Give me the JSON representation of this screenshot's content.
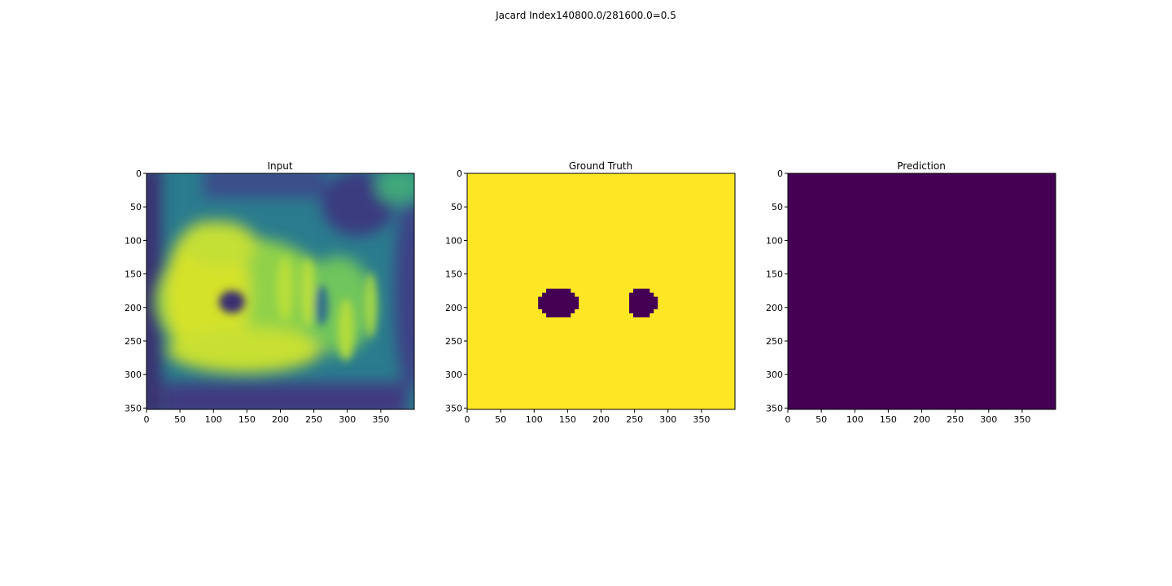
{
  "figure": {
    "suptitle": "Jacard Index140800.0/281600.0=0.5"
  },
  "chart_data": [
    {
      "type": "heatmap",
      "title": "Input",
      "colormap": "viridis",
      "xlim": [
        0,
        400
      ],
      "ylim": [
        352,
        0
      ],
      "xticks": [
        0,
        50,
        100,
        150,
        200,
        250,
        300,
        350
      ],
      "yticks": [
        0,
        50,
        100,
        150,
        200,
        250,
        300,
        350
      ],
      "description_values": {
        "background": 0.45,
        "bright_region_center": [
          150,
          190
        ],
        "dark_hole_center": [
          128,
          190
        ]
      }
    },
    {
      "type": "heatmap",
      "title": "Ground Truth",
      "colormap": "viridis",
      "xlim": [
        0,
        400
      ],
      "ylim": [
        352,
        0
      ],
      "xticks": [
        0,
        50,
        100,
        150,
        200,
        250,
        300,
        350
      ],
      "yticks": [
        0,
        50,
        100,
        150,
        200,
        250,
        300,
        350
      ],
      "background_value": 1,
      "blobs": [
        {
          "value": 0,
          "cx": 135,
          "cy": 193,
          "rx": 29,
          "ry": 21
        },
        {
          "value": 0,
          "cx": 262,
          "cy": 193,
          "rx": 20,
          "ry": 21
        }
      ]
    },
    {
      "type": "heatmap",
      "title": "Prediction",
      "colormap": "viridis",
      "xlim": [
        0,
        400
      ],
      "ylim": [
        352,
        0
      ],
      "xticks": [
        0,
        50,
        100,
        150,
        200,
        250,
        300,
        350
      ],
      "yticks": [
        0,
        50,
        100,
        150,
        200,
        250,
        300,
        350
      ],
      "background_value": 0
    }
  ],
  "colors": {
    "viridis_low": "#440154",
    "viridis_high": "#fde725",
    "axis": "#000000"
  }
}
